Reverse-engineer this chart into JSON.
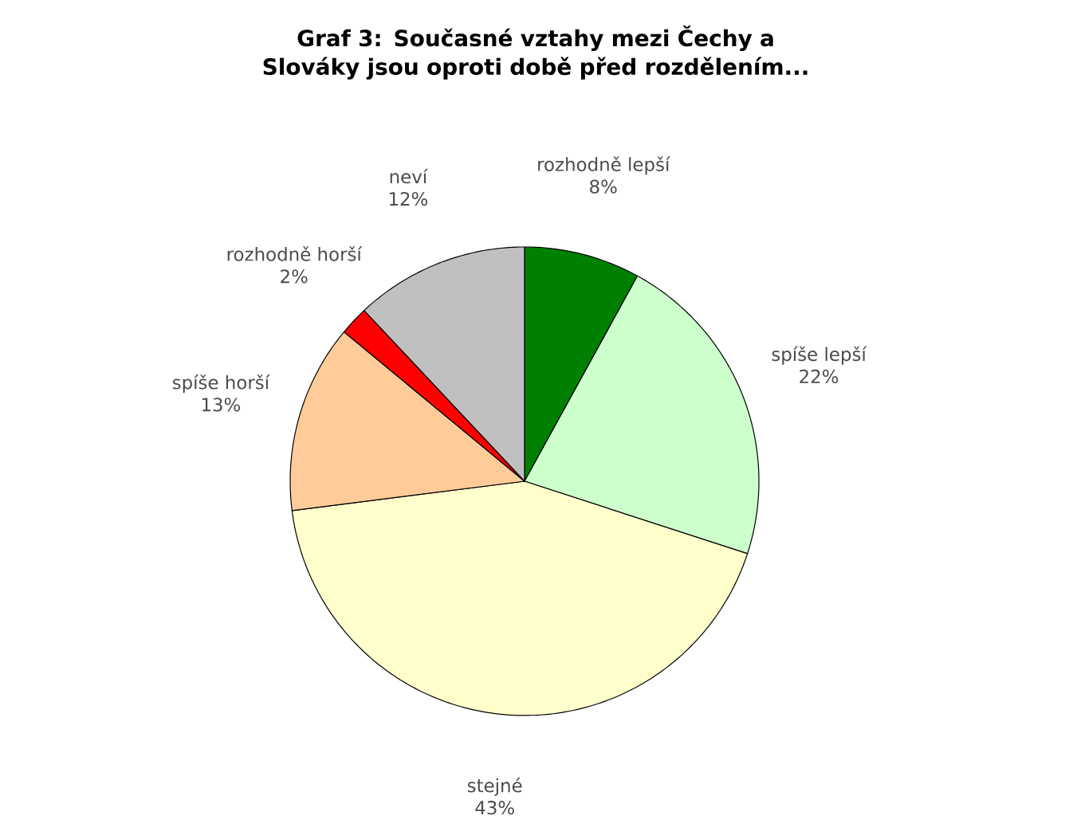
{
  "chart_data": {
    "type": "pie",
    "title": "Graf 3: Současné vztahy mezi Čechy a Slováky jsou oproti době před rozdělením...",
    "categories": [
      "rozhodně lepší",
      "spíše lepší",
      "stejné",
      "spíše horší",
      "rozhodně horší",
      "neví"
    ],
    "values": [
      8,
      22,
      43,
      13,
      2,
      12
    ],
    "value_labels": [
      "8%",
      "22%",
      "43%",
      "13%",
      "2%",
      "12%"
    ],
    "colors": [
      "#008000",
      "#ccffcc",
      "#ffffcc",
      "#ffcc99",
      "#ff0000",
      "#c0c0c0"
    ]
  }
}
